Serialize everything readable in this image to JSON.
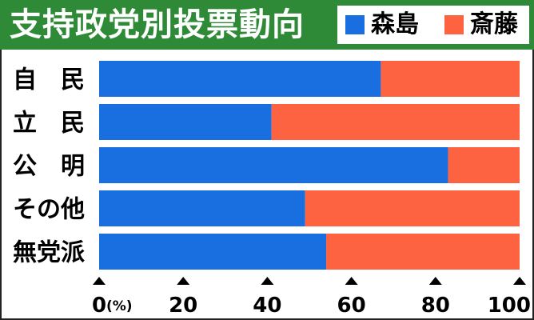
{
  "chart_data": {
    "type": "bar",
    "orientation": "horizontal",
    "stacked": true,
    "title": "支持政党別投票動向",
    "categories": [
      "自　民",
      "立　民",
      "公　明",
      "その他",
      "無党派"
    ],
    "series": [
      {
        "name": "森島",
        "color": "#1a6fe0",
        "values": [
          67,
          41,
          83,
          49,
          54
        ]
      },
      {
        "name": "斎藤",
        "color": "#fd6340",
        "values": [
          33,
          59,
          17,
          51,
          46
        ]
      }
    ],
    "x_ticks": [
      "0",
      "20",
      "40",
      "60",
      "80",
      "100"
    ],
    "x_unit": "(%)",
    "xlim": [
      0,
      100
    ],
    "legend_position": "top-right",
    "grid": false
  }
}
